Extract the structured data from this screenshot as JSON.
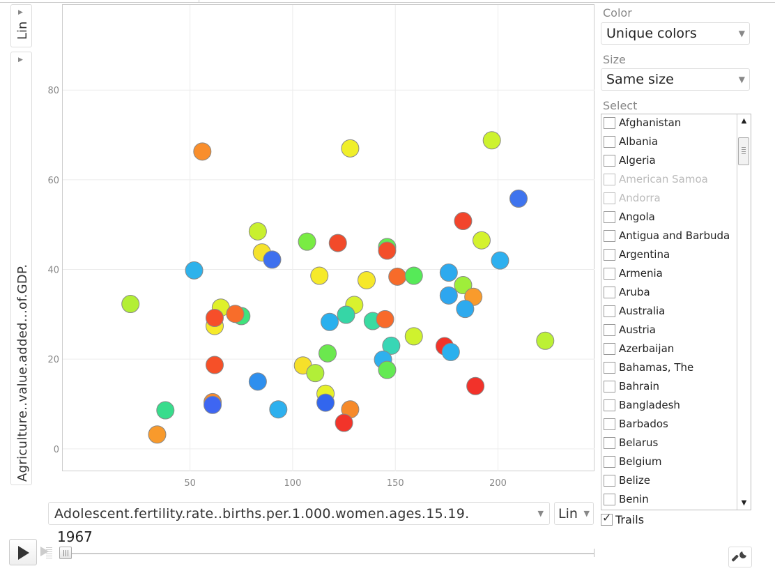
{
  "y_axis": {
    "scale_label": "Lin",
    "variable": "Agriculture..value.added...of.GDP."
  },
  "x_axis": {
    "variable": "Adolescent.fertility.rate..births.per.1.000.women.ages.15.19.",
    "scale_label": "Lin"
  },
  "color": {
    "label": "Color",
    "value": "Unique colors"
  },
  "size": {
    "label": "Size",
    "value": "Same size"
  },
  "select": {
    "label": "Select",
    "items": [
      {
        "name": "Afghanistan",
        "enabled": true
      },
      {
        "name": "Albania",
        "enabled": true
      },
      {
        "name": "Algeria",
        "enabled": true
      },
      {
        "name": "American Samoa",
        "enabled": false
      },
      {
        "name": "Andorra",
        "enabled": false
      },
      {
        "name": "Angola",
        "enabled": true
      },
      {
        "name": "Antigua and Barbuda",
        "enabled": true
      },
      {
        "name": "Argentina",
        "enabled": true
      },
      {
        "name": "Armenia",
        "enabled": true
      },
      {
        "name": "Aruba",
        "enabled": true
      },
      {
        "name": "Australia",
        "enabled": true
      },
      {
        "name": "Austria",
        "enabled": true
      },
      {
        "name": "Azerbaijan",
        "enabled": true
      },
      {
        "name": "Bahamas, The",
        "enabled": true
      },
      {
        "name": "Bahrain",
        "enabled": true
      },
      {
        "name": "Bangladesh",
        "enabled": true
      },
      {
        "name": "Barbados",
        "enabled": true
      },
      {
        "name": "Belarus",
        "enabled": true
      },
      {
        "name": "Belgium",
        "enabled": true
      },
      {
        "name": "Belize",
        "enabled": true
      },
      {
        "name": "Benin",
        "enabled": true
      }
    ]
  },
  "trails": {
    "label": "Trails",
    "checked": true
  },
  "playback": {
    "year": "1967"
  },
  "chart_data": {
    "type": "scatter",
    "xlabel": "Adolescent.fertility.rate..births.per.1.000.women.ages.15.19.",
    "ylabel": "Agriculture..value.added...of.GDP.",
    "xlim": [
      -12,
      247
    ],
    "ylim": [
      -5,
      99
    ],
    "x_ticks": [
      50,
      100,
      150,
      200
    ],
    "y_ticks": [
      0,
      20,
      40,
      60,
      80
    ],
    "grid": true,
    "points": [
      {
        "x": 56,
        "y": 66.3,
        "color": "#f98e2c"
      },
      {
        "x": 128,
        "y": 67.0,
        "color": "#f0ef2a"
      },
      {
        "x": 197,
        "y": 68.8,
        "color": "#cdf22e"
      },
      {
        "x": 210,
        "y": 55.8,
        "color": "#3f74ee"
      },
      {
        "x": 183,
        "y": 50.8,
        "color": "#f2452c"
      },
      {
        "x": 83,
        "y": 48.5,
        "color": "#c9f02f"
      },
      {
        "x": 107,
        "y": 46.2,
        "color": "#79ec43"
      },
      {
        "x": 122,
        "y": 45.9,
        "color": "#f24a2a"
      },
      {
        "x": 146,
        "y": 45.0,
        "color": "#63ec55"
      },
      {
        "x": 146,
        "y": 44.2,
        "color": "#f34e2a"
      },
      {
        "x": 192,
        "y": 46.5,
        "color": "#d4f22e"
      },
      {
        "x": 85,
        "y": 43.8,
        "color": "#f5e22c"
      },
      {
        "x": 90,
        "y": 42.2,
        "color": "#3e70ee"
      },
      {
        "x": 201,
        "y": 42.0,
        "color": "#2fb0ef"
      },
      {
        "x": 52,
        "y": 39.8,
        "color": "#2eb2eb"
      },
      {
        "x": 113,
        "y": 38.6,
        "color": "#f6ea2a"
      },
      {
        "x": 136,
        "y": 37.6,
        "color": "#f6e82a"
      },
      {
        "x": 151,
        "y": 38.4,
        "color": "#f76b2a"
      },
      {
        "x": 159,
        "y": 38.6,
        "color": "#56ea58"
      },
      {
        "x": 176,
        "y": 39.3,
        "color": "#2eaaee"
      },
      {
        "x": 183,
        "y": 36.5,
        "color": "#9fee3a"
      },
      {
        "x": 188,
        "y": 33.9,
        "color": "#f99b2c"
      },
      {
        "x": 176,
        "y": 34.2,
        "color": "#2ea6ef"
      },
      {
        "x": 21,
        "y": 32.3,
        "color": "#b3ef35"
      },
      {
        "x": 65,
        "y": 31.5,
        "color": "#dff02a"
      },
      {
        "x": 75,
        "y": 29.6,
        "color": "#3fe27c"
      },
      {
        "x": 72,
        "y": 30.1,
        "color": "#f86d2a"
      },
      {
        "x": 62,
        "y": 27.4,
        "color": "#f6ea2a"
      },
      {
        "x": 62,
        "y": 29.2,
        "color": "#f64e2a"
      },
      {
        "x": 130,
        "y": 32.1,
        "color": "#d8f22e"
      },
      {
        "x": 126,
        "y": 29.9,
        "color": "#36d6a6"
      },
      {
        "x": 118,
        "y": 28.3,
        "color": "#2ab0ee"
      },
      {
        "x": 139,
        "y": 28.5,
        "color": "#39dba1"
      },
      {
        "x": 145,
        "y": 28.9,
        "color": "#f86a2a"
      },
      {
        "x": 184,
        "y": 31.2,
        "color": "#2eaaee"
      },
      {
        "x": 159,
        "y": 25.1,
        "color": "#cff22e"
      },
      {
        "x": 223,
        "y": 24.1,
        "color": "#bcf135"
      },
      {
        "x": 148,
        "y": 23.0,
        "color": "#38d6b5"
      },
      {
        "x": 174,
        "y": 22.9,
        "color": "#f2342a"
      },
      {
        "x": 177,
        "y": 21.6,
        "color": "#2ab0ee"
      },
      {
        "x": 144,
        "y": 19.9,
        "color": "#2eb0ee"
      },
      {
        "x": 117,
        "y": 21.3,
        "color": "#6be84e"
      },
      {
        "x": 105,
        "y": 18.6,
        "color": "#f6e02a"
      },
      {
        "x": 111,
        "y": 16.9,
        "color": "#b2ef38"
      },
      {
        "x": 146,
        "y": 17.6,
        "color": "#64ea53"
      },
      {
        "x": 62,
        "y": 18.7,
        "color": "#f65028"
      },
      {
        "x": 83,
        "y": 15.0,
        "color": "#2e8fee"
      },
      {
        "x": 189,
        "y": 14.0,
        "color": "#f2322a"
      },
      {
        "x": 116,
        "y": 12.3,
        "color": "#e6f02a"
      },
      {
        "x": 116,
        "y": 10.3,
        "color": "#3266ee"
      },
      {
        "x": 61,
        "y": 10.4,
        "color": "#f88a2c"
      },
      {
        "x": 61,
        "y": 9.8,
        "color": "#3e66f2"
      },
      {
        "x": 93,
        "y": 8.8,
        "color": "#2eb0ee"
      },
      {
        "x": 38,
        "y": 8.6,
        "color": "#38dc8c"
      },
      {
        "x": 128,
        "y": 8.8,
        "color": "#f68a2a"
      },
      {
        "x": 125,
        "y": 5.8,
        "color": "#f2342a"
      },
      {
        "x": 34,
        "y": 3.2,
        "color": "#f89a2c"
      }
    ]
  }
}
